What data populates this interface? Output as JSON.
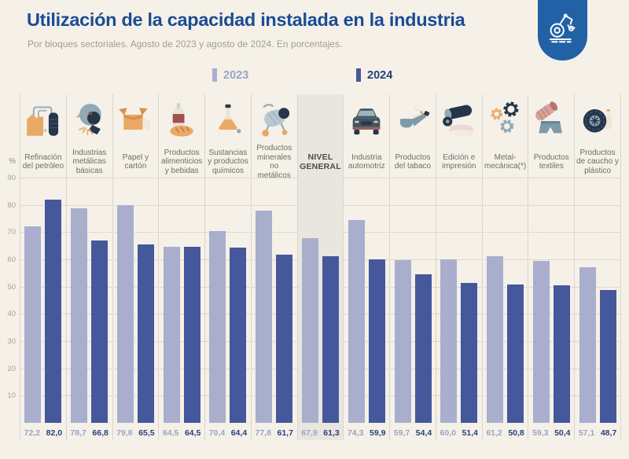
{
  "header": {
    "title": "Utilización de la capacidad instalada en la industria",
    "subtitle": "Por bloques sectoriales. Agosto de 2023 y agosto de 2024. En porcentajes.",
    "logo": {
      "icon": "robot-arm-icon",
      "bg_color": "#2261a6"
    }
  },
  "legend": {
    "items": [
      {
        "label": "2023",
        "swatch_color": "#a9aecd",
        "text_color": "#9aa3c5"
      },
      {
        "label": "2024",
        "swatch_color": "#45589b",
        "text_color": "#24407c"
      }
    ]
  },
  "colors": {
    "background": "#f5f1e8",
    "title": "#1a4c96",
    "bar_2023": "#a9aecd",
    "bar_2024": "#45589b",
    "highlight_band": "#e9e6df",
    "grid": "#c6c2b5",
    "divider": "#dad6cb"
  },
  "chart_data": {
    "type": "bar",
    "title": "Utilización de la capacidad instalada en la industria",
    "subtitle": "Por bloques sectoriales. Agosto de 2023 y agosto de 2024. En porcentajes.",
    "unit": "%",
    "ylabel": "%",
    "ylim": [
      0,
      90
    ],
    "yticks": [
      90,
      80,
      70,
      60,
      50,
      40,
      30,
      20,
      10
    ],
    "grid": "dotted-horizontal",
    "legend_position": "top-center",
    "decimal_separator": ",",
    "highlight_category": "NIVEL GENERAL",
    "categories": [
      "Refinación del petróleo",
      "Industrias metálicas básicas",
      "Papel y cartón",
      "Productos alimenticios y bebidas",
      "Sustancias y productos químicos",
      "Productos minerales no metálicos",
      "NIVEL GENERAL",
      "Industria automotriz",
      "Productos del tabaco",
      "Edición e impresión",
      "Metal-mecánica(*)",
      "Productos textiles",
      "Productos de caucho y plástico"
    ],
    "icons": [
      "oil-refinery-icon",
      "metal-grinding-icon",
      "cardboard-box-icon",
      "food-beverage-icon",
      "chemical-flask-icon",
      "cement-mixer-icon",
      null,
      "car-icon",
      "tobacco-pipe-icon",
      "printing-press-icon",
      "gears-icon",
      "textile-icon",
      "tire-icon"
    ],
    "series": [
      {
        "name": "2023",
        "color": "#a9aecd",
        "values": [
          72.2,
          78.7,
          79.8,
          64.5,
          70.4,
          77.8,
          67.9,
          74.3,
          59.7,
          60.0,
          61.2,
          59.3,
          57.1
        ]
      },
      {
        "name": "2024",
        "color": "#45589b",
        "values": [
          82.0,
          66.8,
          65.5,
          64.5,
          64.4,
          61.7,
          61.3,
          59.9,
          54.4,
          51.4,
          50.8,
          50.4,
          48.7
        ]
      }
    ]
  }
}
